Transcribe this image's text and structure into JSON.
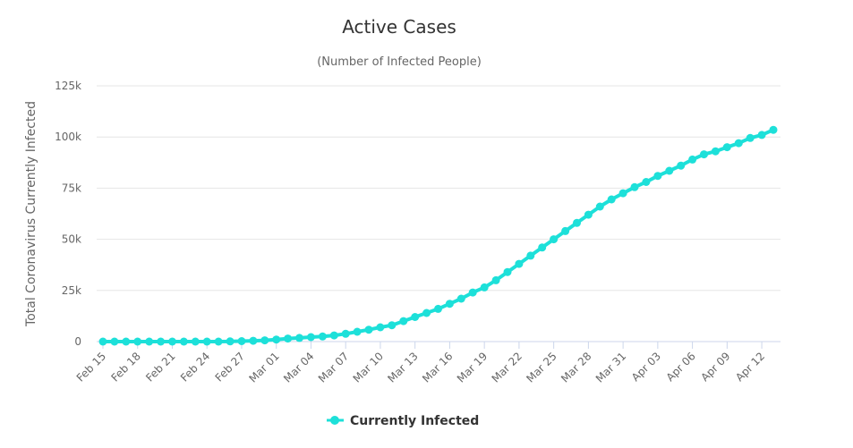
{
  "chart_data": {
    "type": "line",
    "title": "Active Cases",
    "subtitle": "(Number of Infected People)",
    "xlabel": "",
    "ylabel": "Total Coronavirus Currently Infected",
    "ylim": [
      0,
      125000
    ],
    "y_ticks": [
      0,
      25000,
      50000,
      75000,
      100000,
      125000
    ],
    "y_tick_labels": [
      "0",
      "25k",
      "50k",
      "75k",
      "100k",
      "125k"
    ],
    "x_tick_labels": [
      "Feb 15",
      "Feb 18",
      "Feb 21",
      "Feb 24",
      "Feb 27",
      "Mar 01",
      "Mar 04",
      "Mar 07",
      "Mar 10",
      "Mar 13",
      "Mar 16",
      "Mar 19",
      "Mar 22",
      "Mar 25",
      "Mar 28",
      "Mar 31",
      "Apr 03",
      "Apr 06",
      "Apr 09",
      "Apr 12"
    ],
    "grid": true,
    "legend_position": "bottom-center",
    "color": "#1de0d9",
    "series": [
      {
        "name": "Currently Infected",
        "x": [
          "Feb 15",
          "Feb 16",
          "Feb 17",
          "Feb 18",
          "Feb 19",
          "Feb 20",
          "Feb 21",
          "Feb 22",
          "Feb 23",
          "Feb 24",
          "Feb 25",
          "Feb 26",
          "Feb 27",
          "Feb 28",
          "Feb 29",
          "Mar 01",
          "Mar 02",
          "Mar 03",
          "Mar 04",
          "Mar 05",
          "Mar 06",
          "Mar 07",
          "Mar 08",
          "Mar 09",
          "Mar 10",
          "Mar 11",
          "Mar 12",
          "Mar 13",
          "Mar 14",
          "Mar 15",
          "Mar 16",
          "Mar 17",
          "Mar 18",
          "Mar 19",
          "Mar 20",
          "Mar 21",
          "Mar 22",
          "Mar 23",
          "Mar 24",
          "Mar 25",
          "Mar 26",
          "Mar 27",
          "Mar 28",
          "Mar 29",
          "Mar 30",
          "Mar 31",
          "Apr 01",
          "Apr 02",
          "Apr 03",
          "Apr 04",
          "Apr 05",
          "Apr 06",
          "Apr 07",
          "Apr 08",
          "Apr 09",
          "Apr 10",
          "Apr 11",
          "Apr 12",
          "Apr 13"
        ],
        "values": [
          2,
          2,
          2,
          2,
          2,
          2,
          3,
          3,
          3,
          3,
          3,
          100,
          200,
          400,
          600,
          1000,
          1500,
          1800,
          2200,
          2500,
          3000,
          3800,
          4800,
          5800,
          7000,
          8000,
          10000,
          12000,
          14000,
          16000,
          18500,
          21000,
          24000,
          26500,
          30000,
          34000,
          38000,
          42000,
          46000,
          50000,
          54000,
          58000,
          62000,
          66000,
          69500,
          72500,
          75500,
          78000,
          81000,
          83500,
          86000,
          89000,
          91500,
          93000,
          95000,
          97000,
          99500,
          101000,
          103500
        ]
      }
    ]
  }
}
